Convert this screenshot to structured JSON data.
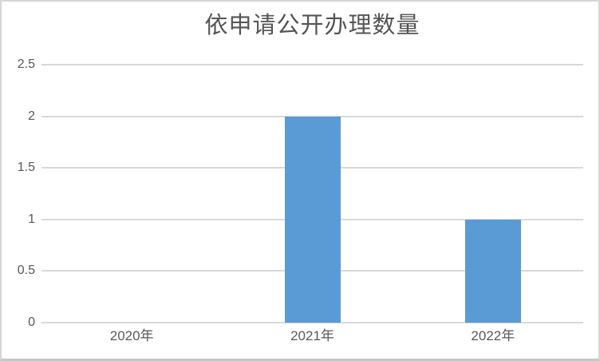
{
  "title": "依申请公开办理数量",
  "colors": {
    "bar": "#5B9BD5",
    "gridline": "#D9D9D9",
    "tick_label": "#595959",
    "title": "#555555",
    "frame_border": "#D6D6D6"
  },
  "chart_data": {
    "type": "bar",
    "title": "依申请公开办理数量",
    "categories": [
      "2020年",
      "2021年",
      "2022年"
    ],
    "values": [
      0,
      2,
      1
    ],
    "xlabel": "",
    "ylabel": "",
    "ylim": [
      0,
      2.5
    ],
    "yticks": [
      0,
      0.5,
      1,
      1.5,
      2,
      2.5
    ],
    "grid": true,
    "legend": false,
    "bar_color": "#5B9BD5"
  }
}
